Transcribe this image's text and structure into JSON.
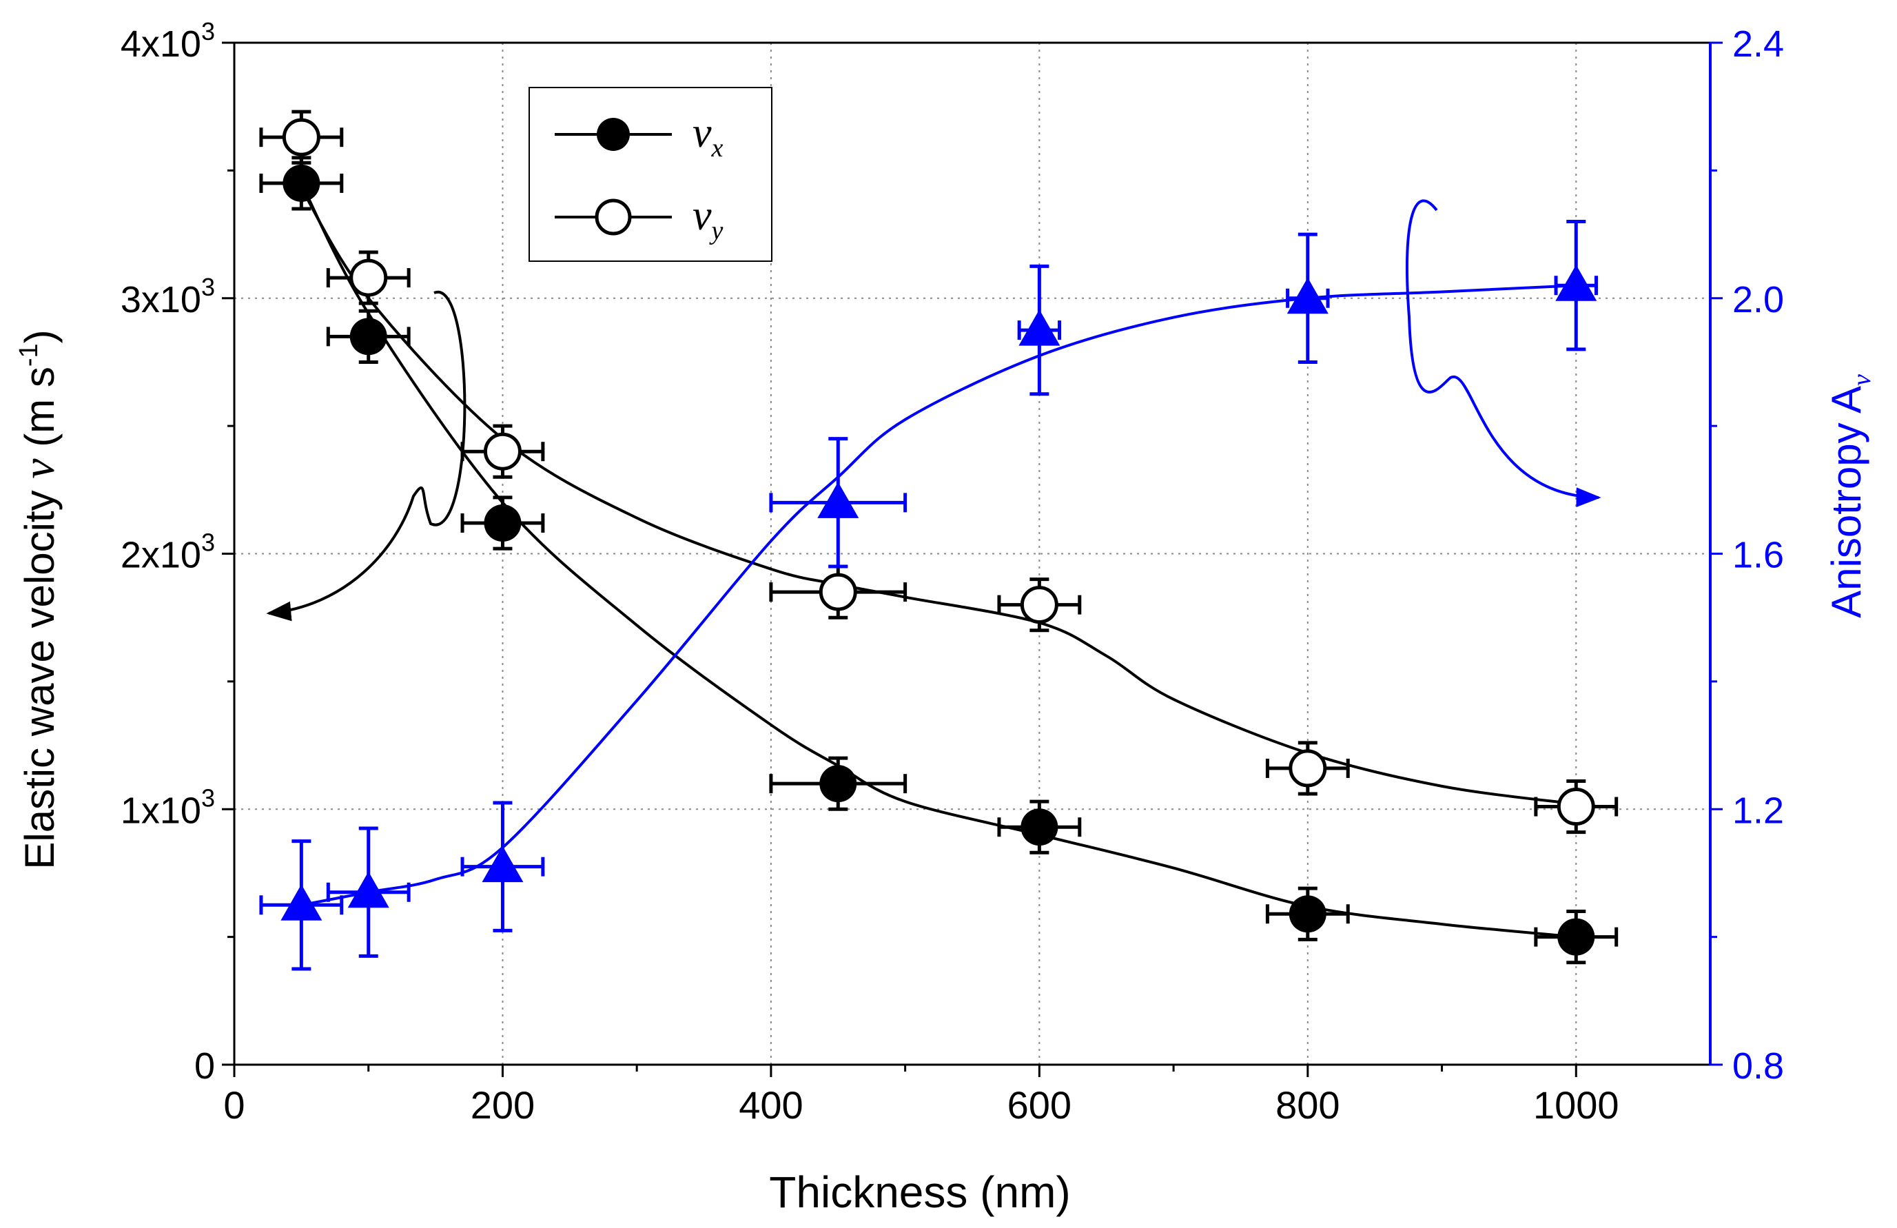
{
  "chart_data": {
    "type": "scatter",
    "xlabel": "Thickness (nm)",
    "ylabel_left": {
      "text": "Elastic wave velocity ",
      "symbol": "ν",
      "unit_open": " (m s",
      "unit_exp": "-1",
      "unit_close": ")"
    },
    "ylabel_right": {
      "text": "Anisotropy A",
      "sub": "ν"
    },
    "xlim": [
      0,
      1100
    ],
    "ylim_left": [
      0,
      4000
    ],
    "ylim_right": [
      0.8,
      2.4
    ],
    "x_ticks": [
      0,
      200,
      400,
      600,
      800,
      1000
    ],
    "x_tick_labels": [
      "0",
      "200",
      "400",
      "600",
      "800",
      "1000"
    ],
    "y_left_ticks": [
      0,
      1000,
      2000,
      3000,
      4000
    ],
    "y_left_tick_labels": [
      {
        "base": "0",
        "exp": ""
      },
      {
        "base": "1x10",
        "exp": "3"
      },
      {
        "base": "2x10",
        "exp": "3"
      },
      {
        "base": "3x10",
        "exp": "3"
      },
      {
        "base": "4x10",
        "exp": "3"
      }
    ],
    "y_right_ticks": [
      0.8,
      1.2,
      1.6,
      2.0,
      2.4
    ],
    "y_right_tick_labels": [
      "0.8",
      "1.2",
      "1.6",
      "2.0",
      "2.4"
    ],
    "grid": true,
    "legend_position": "top-left",
    "series": [
      {
        "name": "vx",
        "label_symbol": "ν",
        "label_sub": "x",
        "axis": "left",
        "marker": "filled-circle",
        "color": "#000000",
        "x": [
          50,
          100,
          200,
          450,
          600,
          800,
          1000
        ],
        "y": [
          3450,
          2850,
          2120,
          1100,
          930,
          590,
          500
        ],
        "xerr": [
          30,
          30,
          30,
          50,
          30,
          30,
          30
        ],
        "yerr": [
          100,
          100,
          100,
          100,
          100,
          100,
          100
        ]
      },
      {
        "name": "vy",
        "label_symbol": "ν",
        "label_sub": "y",
        "axis": "left",
        "marker": "open-circle",
        "color": "#000000",
        "x": [
          50,
          100,
          200,
          450,
          600,
          800,
          1000
        ],
        "y": [
          3630,
          3080,
          2400,
          1850,
          1800,
          1160,
          1010
        ],
        "xerr": [
          30,
          30,
          30,
          50,
          30,
          30,
          30
        ],
        "yerr": [
          100,
          100,
          100,
          100,
          100,
          100,
          100
        ]
      },
      {
        "name": "Anisotropy",
        "axis": "right",
        "marker": "filled-triangle",
        "color": "#0000ff",
        "x": [
          50,
          100,
          200,
          450,
          600,
          800,
          1000
        ],
        "y": [
          1.05,
          1.07,
          1.11,
          1.68,
          1.95,
          2.0,
          2.02
        ],
        "xerr": [
          30,
          30,
          30,
          50,
          15,
          15,
          15
        ],
        "yerr": [
          0.1,
          0.1,
          0.1,
          0.1,
          0.1,
          0.1,
          0.1
        ]
      }
    ],
    "fit_curves": [
      {
        "series": "vx",
        "axis": "left",
        "color": "#000000",
        "x": [
          50,
          100,
          200,
          300,
          400,
          450,
          500,
          600,
          700,
          800,
          900,
          1000
        ],
        "y": [
          3450,
          2940,
          2200,
          1720,
          1330,
          1170,
          1030,
          900,
          770,
          620,
          550,
          500
        ]
      },
      {
        "series": "vy",
        "axis": "left",
        "color": "#000000",
        "x": [
          50,
          100,
          200,
          300,
          400,
          450,
          500,
          600,
          650,
          700,
          800,
          900,
          1000
        ],
        "y": [
          3430,
          3000,
          2450,
          2140,
          1940,
          1880,
          1830,
          1730,
          1600,
          1430,
          1220,
          1090,
          1020
        ]
      },
      {
        "series": "Anisotropy",
        "axis": "right",
        "color": "#0000ff",
        "x": [
          50,
          100,
          150,
          200,
          300,
          400,
          450,
          500,
          600,
          700,
          800,
          900,
          1000
        ],
        "y": [
          1.05,
          1.07,
          1.09,
          1.14,
          1.37,
          1.62,
          1.72,
          1.81,
          1.91,
          1.97,
          2.0,
          2.01,
          2.02
        ]
      }
    ]
  }
}
